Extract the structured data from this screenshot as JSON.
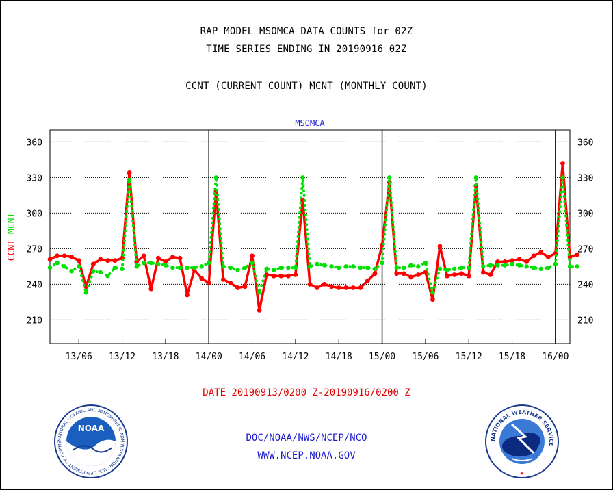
{
  "titles": {
    "line1": "RAP MODEL MSOMCA DATA COUNTS for 02Z",
    "line2": "TIME SERIES ENDING IN 20190916 02Z",
    "line3": "CCNT (CURRENT COUNT) MCNT (MONTHLY COUNT)"
  },
  "date_range": "DATE 20190913/0200 Z-20190916/0200 Z",
  "credits": {
    "line1": "DOC/NOAA/NWS/NCEP/NCO",
    "line2": "WWW.NCEP.NOAA.GOV"
  },
  "logos": {
    "left": "noaa-logo",
    "right": "national-weather-service-logo",
    "left_text": "NATIONAL OCEANIC AND ATMOSPHERIC ADMINISTRATION · U.S. DEPARTMENT OF COMMERCE",
    "left_center": "NOAA",
    "right_text": "NATIONAL WEATHER SERVICE"
  },
  "colors": {
    "ccnt": "#ff0000",
    "mcnt": "#00e000",
    "station_label": "#1a1ad0",
    "credits": "#1a1ad0",
    "date": "#e00000"
  },
  "chart_data": {
    "type": "line",
    "title": "MSOMCA",
    "ylabel": [
      "CCNT",
      "MCNT"
    ],
    "ylim": [
      190,
      370
    ],
    "yticks": [
      210,
      240,
      270,
      300,
      330,
      360
    ],
    "x_start_hour": 2,
    "x_end_hour": 74,
    "xticks": [
      {
        "hour": 6,
        "label": "13/06"
      },
      {
        "hour": 12,
        "label": "13/12"
      },
      {
        "hour": 18,
        "label": "13/18"
      },
      {
        "hour": 24,
        "label": "14/00"
      },
      {
        "hour": 30,
        "label": "14/06"
      },
      {
        "hour": 36,
        "label": "14/12"
      },
      {
        "hour": 42,
        "label": "14/18"
      },
      {
        "hour": 48,
        "label": "15/00"
      },
      {
        "hour": 54,
        "label": "15/06"
      },
      {
        "hour": 60,
        "label": "15/12"
      },
      {
        "hour": 66,
        "label": "15/18"
      },
      {
        "hour": 72,
        "label": "16/00"
      }
    ],
    "day_boundaries": [
      24,
      48,
      72
    ],
    "grid": true,
    "series": [
      {
        "name": "CCNT",
        "color": "#ff0000",
        "values": [
          261,
          264,
          264,
          263,
          260,
          238,
          257,
          261,
          260,
          260,
          262,
          334,
          259,
          264,
          236,
          262,
          259,
          263,
          262,
          231,
          252,
          245,
          241,
          318,
          244,
          241,
          237,
          238,
          264,
          218,
          248,
          247,
          247,
          247,
          248,
          311,
          240,
          237,
          240,
          238,
          237,
          237,
          237,
          237,
          243,
          249,
          273,
          326,
          249,
          249,
          246,
          248,
          250,
          227,
          272,
          247,
          248,
          249,
          247,
          323,
          250,
          248,
          259,
          259,
          260,
          261,
          259,
          264,
          267,
          263,
          266,
          342,
          263,
          265
        ]
      },
      {
        "name": "MCNT",
        "color": "#00e000",
        "values": [
          254,
          258,
          255,
          251,
          255,
          233,
          251,
          250,
          247,
          254,
          253,
          328,
          255,
          258,
          258,
          257,
          256,
          254,
          254,
          254,
          254,
          255,
          258,
          330,
          255,
          254,
          252,
          254,
          258,
          233,
          253,
          252,
          254,
          254,
          254,
          330,
          255,
          257,
          256,
          255,
          254,
          255,
          255,
          254,
          254,
          253,
          258,
          330,
          254,
          254,
          256,
          255,
          258,
          233,
          253,
          252,
          253,
          254,
          254,
          330,
          255,
          256,
          256,
          256,
          257,
          256,
          255,
          254,
          253,
          254,
          257,
          330,
          255,
          255
        ]
      }
    ]
  }
}
